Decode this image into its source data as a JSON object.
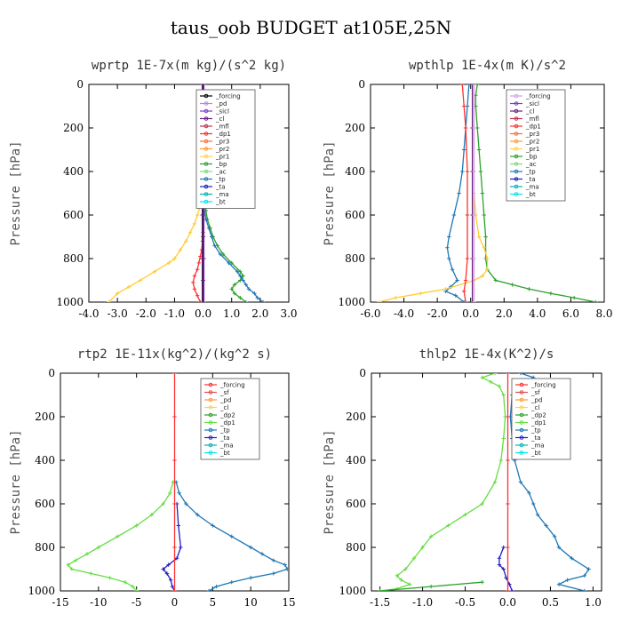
{
  "figure_title": "taus_oob  BUDGET at105E,25N",
  "chart_data": [
    {
      "type": "line",
      "title": "wprtp   1E-7x(m kg)/(s^2 kg)",
      "ylabel": "Pressure [hPa]",
      "xlim": [
        -4.0,
        3.0
      ],
      "xticks": [
        "-4.0",
        "-3.0",
        "-2.0",
        "-1.0",
        "0.0",
        "1.0",
        "2.0",
        "3.0"
      ],
      "ylim": [
        1000,
        0
      ],
      "yticks": [
        "0",
        "200",
        "400",
        "600",
        "800",
        "1000"
      ],
      "legend_position": "top-right",
      "legend": [
        {
          "name": "_forcing",
          "color": "#000000"
        },
        {
          "name": "_pd",
          "color": "#b38cd9"
        },
        {
          "name": "_sicl",
          "color": "#7f3fbf"
        },
        {
          "name": "_cl",
          "color": "#6b1f7f"
        },
        {
          "name": "_mfl",
          "color": "#c0304f"
        },
        {
          "name": "_dp1",
          "color": "#ff3030"
        },
        {
          "name": "_pr3",
          "color": "#ff6a3a"
        },
        {
          "name": "_pr2",
          "color": "#ff9a30"
        },
        {
          "name": "_pr1",
          "color": "#ffd24d"
        },
        {
          "name": "_bp",
          "color": "#2ca02c"
        },
        {
          "name": "_ac",
          "color": "#7fd97f"
        },
        {
          "name": "_tp",
          "color": "#1f77b4"
        },
        {
          "name": "_ta",
          "color": "#2020c0"
        },
        {
          "name": "_ma",
          "color": "#00b3b3"
        },
        {
          "name": "_bt",
          "color": "#00e5e5"
        }
      ],
      "series": [
        {
          "color": "#ffcc33",
          "y": [
            1000,
            960,
            930,
            900,
            860,
            820,
            800,
            760,
            720,
            680,
            640,
            600,
            560,
            520,
            500
          ],
          "x": [
            -3.3,
            -3.0,
            -2.6,
            -2.2,
            -1.7,
            -1.2,
            -1.0,
            -0.8,
            -0.6,
            -0.45,
            -0.3,
            -0.2,
            -0.1,
            -0.05,
            0.0
          ]
        },
        {
          "color": "#2ca02c",
          "y": [
            1000,
            980,
            960,
            940,
            920,
            900,
            880,
            860,
            820,
            780,
            740,
            700,
            660,
            620,
            580,
            540
          ],
          "x": [
            1.5,
            1.3,
            1.1,
            1.0,
            1.1,
            1.3,
            1.4,
            1.3,
            1.0,
            0.7,
            0.5,
            0.35,
            0.25,
            0.15,
            0.1,
            0.05
          ]
        },
        {
          "color": "#1f77b4",
          "y": [
            1000,
            980,
            960,
            940,
            920,
            900,
            880,
            860,
            820,
            780,
            740,
            700,
            660,
            620,
            580
          ],
          "x": [
            2.1,
            1.9,
            1.8,
            1.6,
            1.5,
            1.4,
            1.3,
            1.2,
            0.9,
            0.6,
            0.4,
            0.3,
            0.2,
            0.1,
            0.05
          ]
        },
        {
          "color": "#ff3030",
          "y": [
            1000,
            970,
            940,
            910,
            880,
            850,
            820,
            790,
            760,
            720,
            680
          ],
          "x": [
            -0.1,
            -0.2,
            -0.3,
            -0.35,
            -0.3,
            -0.2,
            -0.15,
            -0.1,
            -0.05,
            -0.02,
            0.0
          ]
        },
        {
          "color": "#000000",
          "y": [
            0,
            100,
            200,
            300,
            400,
            500,
            600,
            700,
            800,
            900,
            1000
          ],
          "x": [
            0,
            0,
            0,
            0,
            0,
            0,
            0,
            0,
            0,
            0,
            0
          ]
        },
        {
          "color": "#7f3fbf",
          "y": [
            0,
            200,
            400,
            600,
            800,
            1000
          ],
          "x": [
            0.03,
            0.03,
            0.03,
            0.03,
            0.03,
            0.03
          ]
        },
        {
          "color": "#6b1f7f",
          "y": [
            0,
            200,
            400,
            600,
            800,
            1000
          ],
          "x": [
            -0.03,
            -0.03,
            -0.03,
            -0.03,
            -0.03,
            -0.03
          ]
        }
      ]
    },
    {
      "type": "line",
      "title": "wpthlp   1E-4x(m K)/s^2",
      "ylabel": "Pressure [hPa]",
      "xlim": [
        -6.0,
        8.0
      ],
      "xticks": [
        "-6.0",
        "-4.0",
        "-2.0",
        "0.0",
        "2.0",
        "4.0",
        "6.0",
        "8.0"
      ],
      "ylim": [
        1000,
        0
      ],
      "yticks": [
        "0",
        "200",
        "400",
        "600",
        "800",
        "1000"
      ],
      "legend_position": "top-right",
      "legend": [
        {
          "name": "_forcing",
          "color": "#d9a0e6"
        },
        {
          "name": "_sicl",
          "color": "#7f3fbf"
        },
        {
          "name": "_cl",
          "color": "#6b1f7f"
        },
        {
          "name": "_mfl",
          "color": "#c0304f"
        },
        {
          "name": "_dp1",
          "color": "#ff3030"
        },
        {
          "name": "_pr3",
          "color": "#ff6a3a"
        },
        {
          "name": "_pr2",
          "color": "#ff9a30"
        },
        {
          "name": "_pr1",
          "color": "#ffd24d"
        },
        {
          "name": "_bp",
          "color": "#2ca02c"
        },
        {
          "name": "_ac",
          "color": "#7fd97f"
        },
        {
          "name": "_tp",
          "color": "#1f77b4"
        },
        {
          "name": "_ta",
          "color": "#2020c0"
        },
        {
          "name": "_ma",
          "color": "#00b3b3"
        },
        {
          "name": "_bt",
          "color": "#00e5e5"
        }
      ],
      "series": [
        {
          "color": "#2ca02c",
          "y": [
            0,
            50,
            100,
            200,
            300,
            400,
            500,
            600,
            700,
            800,
            850,
            900,
            920,
            940,
            960,
            980,
            1000
          ],
          "x": [
            0.4,
            0.3,
            0.3,
            0.4,
            0.5,
            0.6,
            0.7,
            0.8,
            0.9,
            0.9,
            1.0,
            1.5,
            2.5,
            3.5,
            4.8,
            6.2,
            7.5
          ]
        },
        {
          "color": "#1f77b4",
          "y": [
            0,
            100,
            200,
            300,
            400,
            500,
            600,
            700,
            750,
            800,
            850,
            900,
            930,
            950,
            970,
            1000
          ],
          "x": [
            -0.1,
            -0.2,
            -0.3,
            -0.4,
            -0.5,
            -0.7,
            -1.0,
            -1.3,
            -1.4,
            -1.3,
            -1.1,
            -0.8,
            -1.2,
            -1.5,
            -0.9,
            -0.4
          ]
        },
        {
          "color": "#ffcc33",
          "y": [
            500,
            600,
            700,
            750,
            800,
            850,
            880,
            900,
            940,
            960,
            980,
            1000
          ],
          "x": [
            0.2,
            0.3,
            0.5,
            0.8,
            1.0,
            1.0,
            0.7,
            0.2,
            -1.5,
            -3.0,
            -4.5,
            -5.5
          ]
        },
        {
          "color": "#ff3030",
          "y": [
            0,
            100,
            200,
            400,
            600,
            800,
            900,
            950,
            1000
          ],
          "x": [
            -0.5,
            -0.4,
            -0.3,
            -0.2,
            -0.2,
            -0.2,
            -0.3,
            -0.4,
            -0.3
          ]
        },
        {
          "color": "#6b1f7f",
          "y": [
            0,
            200,
            400,
            600,
            800,
            1000
          ],
          "x": [
            0.1,
            0.1,
            0.1,
            0.1,
            0.1,
            0.1
          ]
        },
        {
          "color": "#d9a0e6",
          "y": [
            0,
            200,
            400,
            600,
            800,
            1000
          ],
          "x": [
            0.2,
            0.2,
            0.2,
            0.2,
            0.2,
            0.2
          ]
        }
      ]
    },
    {
      "type": "line",
      "title": "rtp2   1E-11x(kg^2)/(kg^2 s)",
      "ylabel": "Pressure [hPa]",
      "xlim": [
        -15,
        15
      ],
      "xticks": [
        "-15",
        "-10",
        "-5",
        "0",
        "5",
        "10",
        "15"
      ],
      "ylim": [
        1000,
        0
      ],
      "yticks": [
        "0",
        "200",
        "400",
        "600",
        "800",
        "1000"
      ],
      "legend_position": "top-right",
      "legend": [
        {
          "name": "_forcing",
          "color": "#ff3030"
        },
        {
          "name": "_sf",
          "color": "#e05050"
        },
        {
          "name": "_pd",
          "color": "#ff9a30"
        },
        {
          "name": "_cl",
          "color": "#ffd24d"
        },
        {
          "name": "_dp2",
          "color": "#2ca02c"
        },
        {
          "name": "_dp1",
          "color": "#66dd44"
        },
        {
          "name": "_tp",
          "color": "#1f77b4"
        },
        {
          "name": "_ta",
          "color": "#2020c0"
        },
        {
          "name": "_ma",
          "color": "#00b3b3"
        },
        {
          "name": "_bt",
          "color": "#00e5e5"
        }
      ],
      "series": [
        {
          "color": "#66dd44",
          "y": [
            500,
            550,
            600,
            650,
            700,
            750,
            800,
            830,
            860,
            880,
            900,
            920,
            940,
            960,
            980,
            1000
          ],
          "x": [
            -0.2,
            -0.6,
            -1.5,
            -3.0,
            -5.0,
            -7.5,
            -10.0,
            -11.5,
            -13.0,
            -14.0,
            -13.5,
            -11.0,
            -8.5,
            -6.5,
            -5.5,
            -5.0
          ]
        },
        {
          "color": "#1f77b4",
          "y": [
            500,
            550,
            600,
            650,
            700,
            750,
            800,
            830,
            860,
            880,
            900,
            920,
            940,
            960,
            980,
            1000
          ],
          "x": [
            0.2,
            0.6,
            1.5,
            3.0,
            5.0,
            7.5,
            10.0,
            11.5,
            13.0,
            14.5,
            14.8,
            13.0,
            10.0,
            7.5,
            5.5,
            4.5
          ]
        },
        {
          "color": "#2020c0",
          "y": [
            600,
            700,
            800,
            850,
            880,
            900,
            920,
            950,
            980,
            1000
          ],
          "x": [
            0.3,
            0.5,
            0.8,
            0.3,
            -0.8,
            -1.5,
            -1.0,
            -0.5,
            -0.3,
            0.0
          ]
        },
        {
          "color": "#ff3030",
          "y": [
            0,
            200,
            400,
            600,
            800,
            1000
          ],
          "x": [
            0,
            0,
            0,
            0,
            0,
            0
          ]
        }
      ]
    },
    {
      "type": "line",
      "title": "thlp2   1E-4x(K^2)/s",
      "ylabel": "Pressure [hPa]",
      "xlim": [
        -1.6,
        1.1
      ],
      "xticks": [
        "-1.5",
        "-1.0",
        "-0.5",
        "0.0",
        "0.5",
        "1.0"
      ],
      "ylim": [
        1000,
        0
      ],
      "yticks": [
        "0",
        "200",
        "400",
        "600",
        "800",
        "1000"
      ],
      "legend_position": "top-right",
      "legend": [
        {
          "name": "_forcing",
          "color": "#ff3030"
        },
        {
          "name": "_sf",
          "color": "#e05050"
        },
        {
          "name": "_pd",
          "color": "#ff9a30"
        },
        {
          "name": "_cl",
          "color": "#ffd24d"
        },
        {
          "name": "_dp2",
          "color": "#2ca02c"
        },
        {
          "name": "_dp1",
          "color": "#66dd44"
        },
        {
          "name": "_tp",
          "color": "#1f77b4"
        },
        {
          "name": "_ta",
          "color": "#2020c0"
        },
        {
          "name": "_ma",
          "color": "#00b3b3"
        },
        {
          "name": "_bt",
          "color": "#00e5e5"
        }
      ],
      "series": [
        {
          "color": "#66dd44",
          "y": [
            0,
            20,
            40,
            60,
            100,
            200,
            300,
            400,
            500,
            600,
            650,
            700,
            750,
            800,
            850,
            900,
            930,
            950,
            970,
            990,
            1000
          ],
          "x": [
            -0.15,
            -0.3,
            -0.2,
            -0.1,
            -0.05,
            -0.03,
            -0.05,
            -0.08,
            -0.15,
            -0.3,
            -0.5,
            -0.7,
            -0.9,
            -1.0,
            -1.1,
            -1.2,
            -1.3,
            -1.25,
            -1.15,
            -1.3,
            -1.5
          ]
        },
        {
          "color": "#1f77b4",
          "y": [
            0,
            20,
            40,
            60,
            100,
            200,
            300,
            400,
            500,
            550,
            600,
            650,
            700,
            750,
            800,
            850,
            900,
            930,
            950,
            970,
            1000
          ],
          "x": [
            0.15,
            0.3,
            0.2,
            0.1,
            0.05,
            0.03,
            0.05,
            0.08,
            0.15,
            0.25,
            0.3,
            0.35,
            0.45,
            0.55,
            0.6,
            0.75,
            0.95,
            0.9,
            0.7,
            0.6,
            0.9
          ]
        },
        {
          "color": "#2020c0",
          "y": [
            800,
            850,
            880,
            900,
            940,
            970,
            1000
          ],
          "x": [
            -0.05,
            -0.1,
            -0.1,
            -0.05,
            -0.02,
            0.02,
            0.05
          ]
        },
        {
          "color": "#2ca02c",
          "y": [
            960,
            980,
            1000
          ],
          "x": [
            -0.3,
            -0.9,
            -1.5
          ]
        },
        {
          "color": "#ff3030",
          "y": [
            0,
            200,
            400,
            600,
            800,
            1000
          ],
          "x": [
            0,
            0,
            0,
            0,
            0,
            0
          ]
        }
      ]
    }
  ]
}
